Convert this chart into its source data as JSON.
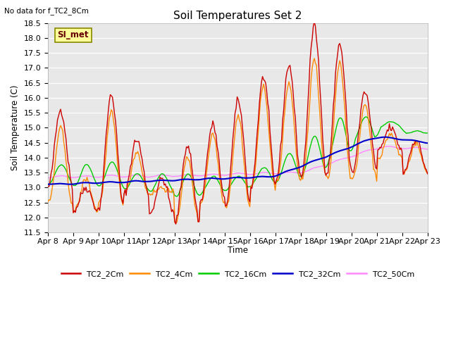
{
  "title": "Soil Temperatures Set 2",
  "top_left_note": "No data for f_TC2_8Cm",
  "ylabel": "Soil Temperature (C)",
  "xlabel": "Time",
  "annotation_label": "SI_met",
  "ylim": [
    11.5,
    18.5
  ],
  "yticks": [
    11.5,
    12.0,
    12.5,
    13.0,
    13.5,
    14.0,
    14.5,
    15.0,
    15.5,
    16.0,
    16.5,
    17.0,
    17.5,
    18.0,
    18.5
  ],
  "xtick_labels": [
    "Apr 8",
    "Apr 9",
    "Apr 10",
    "Apr 11",
    "Apr 12",
    "Apr 13",
    "Apr 14",
    "Apr 15",
    "Apr 16",
    "Apr 17",
    "Apr 18",
    "Apr 19",
    "Apr 20",
    "Apr 21",
    "Apr 22",
    "Apr 23"
  ],
  "series_colors": {
    "TC2_2Cm": "#cc0000",
    "TC2_4Cm": "#ff8800",
    "TC2_16Cm": "#00cc00",
    "TC2_32Cm": "#0000cc",
    "TC2_50Cm": "#ff88ff"
  },
  "legend_entries": [
    "TC2_2Cm",
    "TC2_4Cm",
    "TC2_16Cm",
    "TC2_32Cm",
    "TC2_50Cm"
  ],
  "plot_bg_color": "#e8e8e8",
  "grid_color": "#ffffff",
  "annotation_bg": "#ffff99",
  "annotation_border": "#888800",
  "annotation_text_color": "#660000"
}
